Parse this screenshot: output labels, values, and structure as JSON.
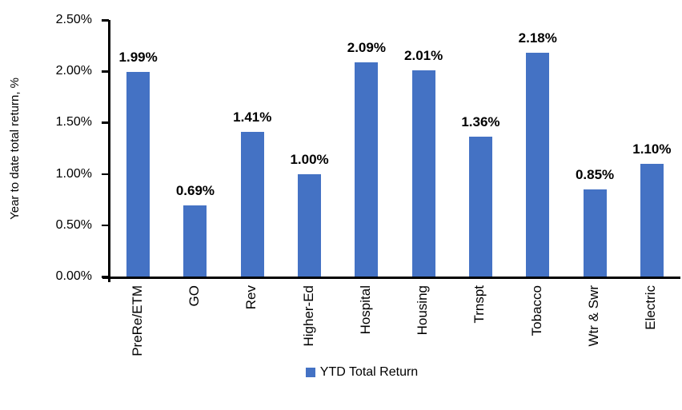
{
  "chart_data": {
    "type": "bar",
    "title": "",
    "categories": [
      "PreRe/ETM",
      "GO",
      "Rev",
      "Higher-Ed",
      "Hospital",
      "Housing",
      "Trnspt",
      "Tobacco",
      "Wtr & Swr",
      "Electric"
    ],
    "values": [
      1.99,
      0.69,
      1.41,
      1.0,
      2.09,
      2.01,
      1.36,
      2.18,
      0.85,
      1.1
    ],
    "labels": [
      "1.99%",
      "0.69%",
      "1.41%",
      "1.00%",
      "2.09%",
      "2.01%",
      "1.36%",
      "2.18%",
      "0.85%",
      "1.10%"
    ],
    "xlabel": "",
    "ylabel": "Year to date total return, %",
    "ylim": [
      0,
      2.5
    ],
    "y_ticks": [
      {
        "value": 0.0,
        "label": "0.00%"
      },
      {
        "value": 0.5,
        "label": "0.50%"
      },
      {
        "value": 1.0,
        "label": "1.00%"
      },
      {
        "value": 1.5,
        "label": "1.50%"
      },
      {
        "value": 2.0,
        "label": "2.00%"
      },
      {
        "value": 2.5,
        "label": "2.50%"
      }
    ],
    "grid": false,
    "legend_position": "bottom",
    "bar_color": "#4472C4",
    "legend": [
      {
        "label": "YTD Total Return",
        "color": "#4472C4"
      }
    ]
  },
  "colors": {
    "background": "#FFFFFF",
    "axis": "#000000",
    "text": "#000000",
    "bar": "#4472C4"
  }
}
